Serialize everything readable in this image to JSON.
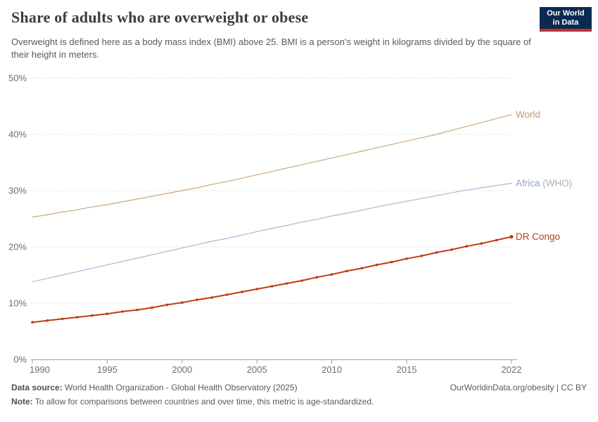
{
  "header": {
    "logo": {
      "line1": "Our World",
      "line2": "in Data",
      "bg_color": "#0b2a52",
      "bar_color": "#c8302f"
    }
  },
  "chart_data": {
    "type": "line",
    "title": "Share of adults who are overweight or obese",
    "subtitle": "Overweight is defined here as a body mass index (BMI) above 25. BMI is a person's weight in kilograms divided by the square of their height in meters.",
    "xlabel": "",
    "ylabel": "",
    "xlim": [
      1990,
      2022
    ],
    "ylim": [
      0,
      50
    ],
    "xticks": [
      1990,
      1995,
      2000,
      2005,
      2010,
      2015,
      2022
    ],
    "yticks": [
      0,
      10,
      20,
      30,
      40,
      50
    ],
    "ytick_suffix": "%",
    "grid": "horizontal-dashed",
    "legend_position": "right-end-labels",
    "x": [
      1990,
      1991,
      1992,
      1993,
      1994,
      1995,
      1996,
      1997,
      1998,
      1999,
      2000,
      2001,
      2002,
      2003,
      2004,
      2005,
      2006,
      2007,
      2008,
      2009,
      2010,
      2011,
      2012,
      2013,
      2014,
      2015,
      2016,
      2017,
      2018,
      2019,
      2020,
      2021,
      2022
    ],
    "series": [
      {
        "name": "World",
        "color": "#C9A77F",
        "label_parts": [
          {
            "text": "World",
            "color": "#C09A6F"
          }
        ],
        "line_width": 1.2,
        "markers": false,
        "values": [
          25.3,
          25.7,
          26.2,
          26.6,
          27.1,
          27.5,
          28.0,
          28.5,
          29.0,
          29.5,
          30.0,
          30.5,
          31.1,
          31.6,
          32.2,
          32.8,
          33.4,
          34.0,
          34.6,
          35.2,
          35.8,
          36.4,
          37.0,
          37.6,
          38.2,
          38.8,
          39.4,
          40.0,
          40.7,
          41.4,
          42.1,
          42.8,
          43.5
        ]
      },
      {
        "name": "Africa (WHO)",
        "color": "#A5B8D6",
        "label_parts": [
          {
            "text": "Africa ",
            "color": "#8FA6CB"
          },
          {
            "text": "(WHO)",
            "color": "#A9B0BC"
          }
        ],
        "line_width": 1.2,
        "markers": false,
        "values": [
          13.8,
          14.4,
          15.0,
          15.6,
          16.2,
          16.8,
          17.4,
          18.0,
          18.6,
          19.2,
          19.8,
          20.4,
          21.0,
          21.5,
          22.1,
          22.7,
          23.3,
          23.8,
          24.4,
          24.9,
          25.5,
          26.0,
          26.5,
          27.1,
          27.6,
          28.1,
          28.6,
          29.1,
          29.6,
          30.1,
          30.5,
          30.9,
          31.3
        ]
      },
      {
        "name": "DR Congo",
        "color": "#BE3B17",
        "label_parts": [
          {
            "text": "DR Congo",
            "color": "#BE3B17"
          }
        ],
        "line_width": 2,
        "markers": true,
        "values": [
          6.6,
          6.9,
          7.2,
          7.5,
          7.8,
          8.1,
          8.5,
          8.8,
          9.2,
          9.7,
          10.1,
          10.6,
          11.0,
          11.5,
          12.0,
          12.5,
          13.0,
          13.5,
          14.0,
          14.6,
          15.1,
          15.7,
          16.2,
          16.8,
          17.3,
          17.9,
          18.4,
          19.0,
          19.5,
          20.1,
          20.6,
          21.2,
          21.8
        ]
      }
    ],
    "axis_colors": {
      "grid": "#dadada",
      "axis_line": "#a3a3a3",
      "tick_label": "#6e6e6e"
    }
  },
  "footer": {
    "datasource_label": "Data source:",
    "datasource_text": " World Health Organization - Global Health Observatory (2025)",
    "note_label": "Note:",
    "note_text": " To allow for comparisons between countries and over time, this metric is age-standardized.",
    "link": "OurWorldinData.org/obesity | CC BY"
  }
}
